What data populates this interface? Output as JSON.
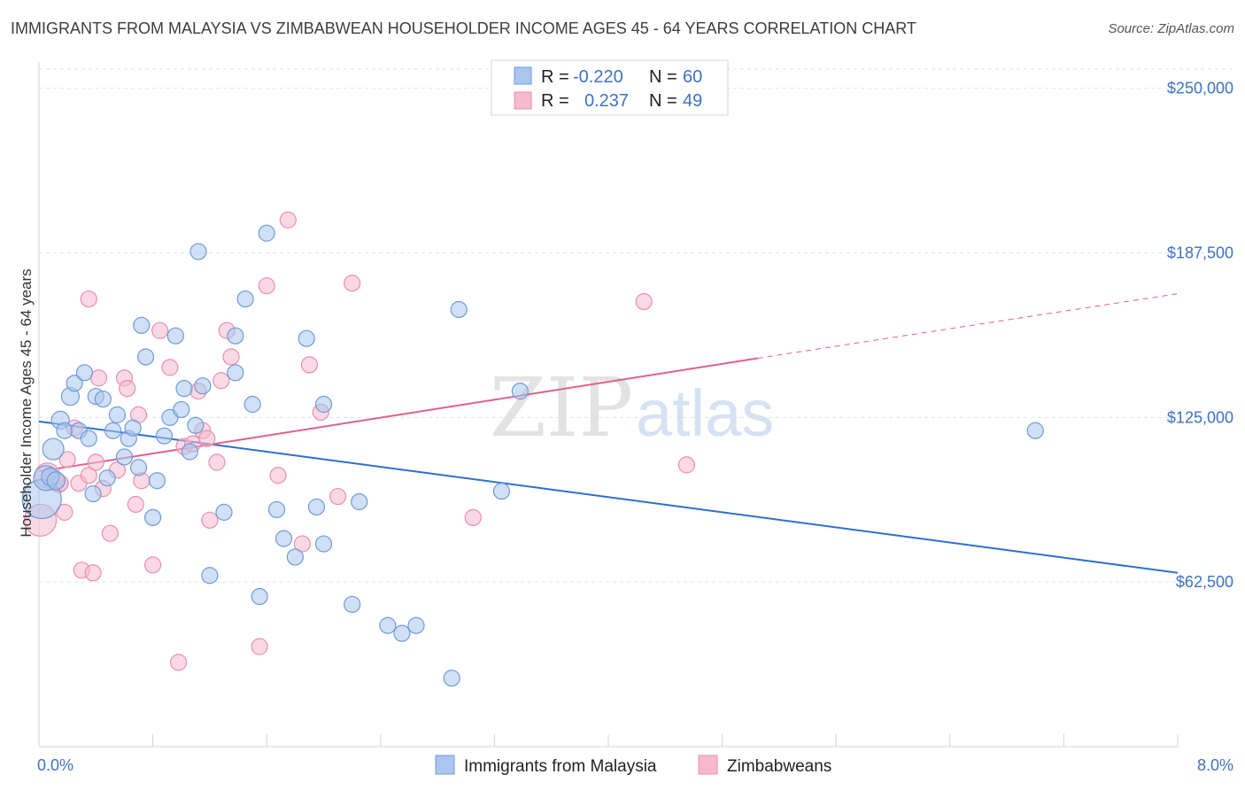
{
  "title": "IMMIGRANTS FROM MALAYSIA VS ZIMBABWEAN HOUSEHOLDER INCOME AGES 45 - 64 YEARS CORRELATION CHART",
  "source": "Source: ZipAtlas.com",
  "watermark": {
    "zip": "ZIP",
    "atlas": "atlas"
  },
  "colors": {
    "blue_fill": "#a9c6ee",
    "blue_stroke": "#6f9bd8",
    "blue_line": "#2d6fd0",
    "pink_fill": "#f6b9cd",
    "pink_stroke": "#ea8fae",
    "pink_line": "#e0608c",
    "tick_text": "#3f72c4",
    "grid": "#dde2ea"
  },
  "legend": {
    "rows": [
      {
        "r_label": "R =",
        "r_value": "-0.220",
        "n_label": "N =",
        "n_value": "60"
      },
      {
        "r_label": "R =",
        "r_value": "0.237",
        "n_label": "N =",
        "n_value": "49"
      }
    ]
  },
  "chart_data": {
    "type": "scatter",
    "title": "IMMIGRANTS FROM MALAYSIA VS ZIMBABWEAN HOUSEHOLDER INCOME AGES 45 - 64 YEARS CORRELATION CHART",
    "xlabel": "",
    "ylabel": "Householder Income Ages 45 - 64 years",
    "xlim": [
      0,
      8
    ],
    "ylim": [
      0,
      260000
    ],
    "x_tick_labels": [
      "0.0%",
      "8.0%"
    ],
    "y_ticks": [
      62500,
      125000,
      187500,
      250000
    ],
    "y_tick_labels": [
      "$62,500",
      "$125,000",
      "$187,500",
      "$250,000"
    ],
    "grid": true,
    "legend_position": "top-center",
    "series": [
      {
        "name": "Immigrants from Malaysia",
        "r": -0.22,
        "n": 60,
        "trend": {
          "x": [
            0,
            8
          ],
          "y": [
            123500,
            66000
          ]
        },
        "points": [
          [
            0.02,
            94000,
            22
          ],
          [
            0.05,
            102000,
            14
          ],
          [
            0.08,
            102500,
            10
          ],
          [
            0.1,
            113000,
            12
          ],
          [
            0.12,
            101000,
            10
          ],
          [
            0.15,
            124000,
            10
          ],
          [
            0.18,
            120000,
            9
          ],
          [
            0.22,
            133000,
            10
          ],
          [
            0.25,
            138000,
            9
          ],
          [
            0.28,
            120000,
            9
          ],
          [
            0.32,
            142000,
            9
          ],
          [
            0.35,
            117000,
            9
          ],
          [
            0.38,
            96000,
            9
          ],
          [
            0.4,
            133000,
            9
          ],
          [
            0.45,
            132000,
            9
          ],
          [
            0.48,
            102000,
            9
          ],
          [
            0.52,
            120000,
            9
          ],
          [
            0.55,
            126000,
            9
          ],
          [
            0.6,
            110000,
            9
          ],
          [
            0.63,
            117000,
            9
          ],
          [
            0.66,
            121000,
            9
          ],
          [
            0.7,
            106000,
            9
          ],
          [
            0.72,
            160000,
            9
          ],
          [
            0.75,
            148000,
            9
          ],
          [
            0.8,
            87000,
            9
          ],
          [
            0.83,
            101000,
            9
          ],
          [
            0.88,
            118000,
            9
          ],
          [
            0.92,
            125000,
            9
          ],
          [
            0.96,
            156000,
            9
          ],
          [
            1.0,
            128000,
            9
          ],
          [
            1.02,
            136000,
            9
          ],
          [
            1.06,
            112000,
            9
          ],
          [
            1.1,
            122000,
            9
          ],
          [
            1.15,
            137000,
            9
          ],
          [
            1.2,
            65000,
            9
          ],
          [
            1.3,
            89000,
            9
          ],
          [
            1.38,
            142000,
            9
          ],
          [
            1.45,
            170000,
            9
          ],
          [
            1.5,
            130000,
            9
          ],
          [
            1.55,
            57000,
            9
          ],
          [
            1.6,
            195000,
            9
          ],
          [
            1.67,
            90000,
            9
          ],
          [
            1.72,
            79000,
            9
          ],
          [
            1.8,
            72000,
            9
          ],
          [
            1.88,
            155000,
            9
          ],
          [
            1.95,
            91000,
            9
          ],
          [
            2.0,
            77000,
            9
          ],
          [
            2.2,
            54000,
            9
          ],
          [
            2.25,
            93000,
            9
          ],
          [
            2.45,
            46000,
            9
          ],
          [
            2.55,
            43000,
            9
          ],
          [
            2.65,
            46000,
            9
          ],
          [
            2.9,
            26000,
            9
          ],
          [
            2.95,
            166000,
            9
          ],
          [
            3.25,
            97000,
            9
          ],
          [
            3.38,
            135000,
            9
          ],
          [
            7.0,
            120000,
            9
          ],
          [
            1.12,
            188000,
            9
          ],
          [
            1.38,
            156000,
            9
          ],
          [
            2.0,
            130000,
            9
          ]
        ]
      },
      {
        "name": "Zimbabweans",
        "r": 0.237,
        "n": 49,
        "trend": {
          "x": [
            0,
            5.05,
            8
          ],
          "y": [
            104500,
            147500,
            172000
          ]
        },
        "points": [
          [
            0.01,
            86000,
            18
          ],
          [
            0.06,
            103000,
            14
          ],
          [
            0.1,
            101000,
            11
          ],
          [
            0.14,
            100000,
            10
          ],
          [
            0.18,
            89000,
            9
          ],
          [
            0.2,
            109000,
            9
          ],
          [
            0.25,
            121000,
            9
          ],
          [
            0.28,
            100000,
            9
          ],
          [
            0.3,
            67000,
            9
          ],
          [
            0.35,
            103000,
            9
          ],
          [
            0.38,
            66000,
            9
          ],
          [
            0.4,
            108000,
            9
          ],
          [
            0.45,
            98000,
            9
          ],
          [
            0.5,
            81000,
            9
          ],
          [
            0.55,
            105000,
            9
          ],
          [
            0.6,
            140000,
            9
          ],
          [
            0.62,
            136000,
            9
          ],
          [
            0.68,
            92000,
            9
          ],
          [
            0.72,
            101000,
            9
          ],
          [
            0.8,
            69000,
            9
          ],
          [
            0.85,
            158000,
            9
          ],
          [
            0.92,
            144000,
            9
          ],
          [
            0.98,
            32000,
            9
          ],
          [
            1.02,
            114000,
            9
          ],
          [
            1.08,
            115000,
            9
          ],
          [
            1.12,
            135000,
            9
          ],
          [
            1.15,
            120000,
            9
          ],
          [
            1.18,
            117000,
            9
          ],
          [
            1.2,
            86000,
            9
          ],
          [
            1.25,
            108000,
            9
          ],
          [
            1.28,
            139000,
            9
          ],
          [
            1.32,
            158000,
            9
          ],
          [
            1.35,
            148000,
            9
          ],
          [
            1.55,
            38000,
            9
          ],
          [
            1.6,
            175000,
            9
          ],
          [
            1.68,
            103000,
            9
          ],
          [
            1.75,
            200000,
            9
          ],
          [
            1.85,
            77000,
            9
          ],
          [
            1.9,
            145000,
            9
          ],
          [
            1.98,
            127000,
            9
          ],
          [
            2.1,
            95000,
            9
          ],
          [
            2.2,
            176000,
            9
          ],
          [
            3.05,
            87000,
            9
          ],
          [
            4.25,
            169000,
            9
          ],
          [
            4.55,
            107000,
            9
          ],
          [
            0.35,
            170000,
            9
          ],
          [
            0.42,
            140000,
            9
          ],
          [
            0.7,
            126000,
            9
          ],
          [
            0.15,
            100000,
            9
          ]
        ]
      }
    ]
  }
}
